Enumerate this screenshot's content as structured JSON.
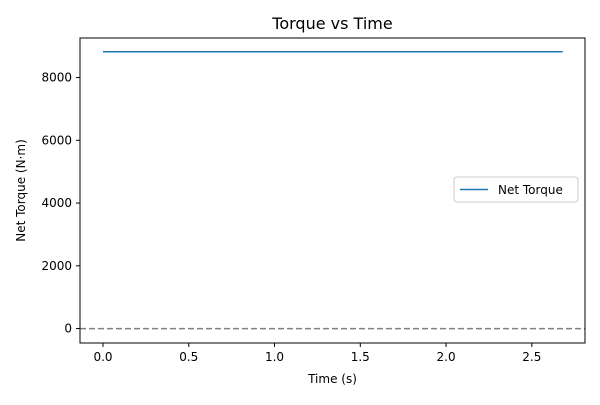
{
  "chart_data": {
    "type": "line",
    "title": "Torque vs Time",
    "xlabel": "Time (s)",
    "ylabel": "Net Torque (N·m)",
    "xlim": [
      -0.134,
      2.81
    ],
    "ylim": [
      -460,
      9260
    ],
    "xticks": [
      0.0,
      0.5,
      1.0,
      1.5,
      2.0,
      2.5
    ],
    "xtick_labels": [
      "0.0",
      "0.5",
      "1.0",
      "1.5",
      "2.0",
      "2.5"
    ],
    "yticks": [
      0,
      2000,
      4000,
      6000,
      8000
    ],
    "ytick_labels": [
      "0",
      "2000",
      "4000",
      "6000",
      "8000"
    ],
    "grid": false,
    "legend": "center-right",
    "series": [
      {
        "name": "Net Torque",
        "color": "#1f77b4",
        "x": [
          0.0,
          2.68
        ],
        "y": [
          8820,
          8820
        ]
      }
    ],
    "reference_lines": [
      {
        "orientation": "horizontal",
        "y": 0,
        "style": "dashed",
        "color": "#808080"
      }
    ]
  }
}
